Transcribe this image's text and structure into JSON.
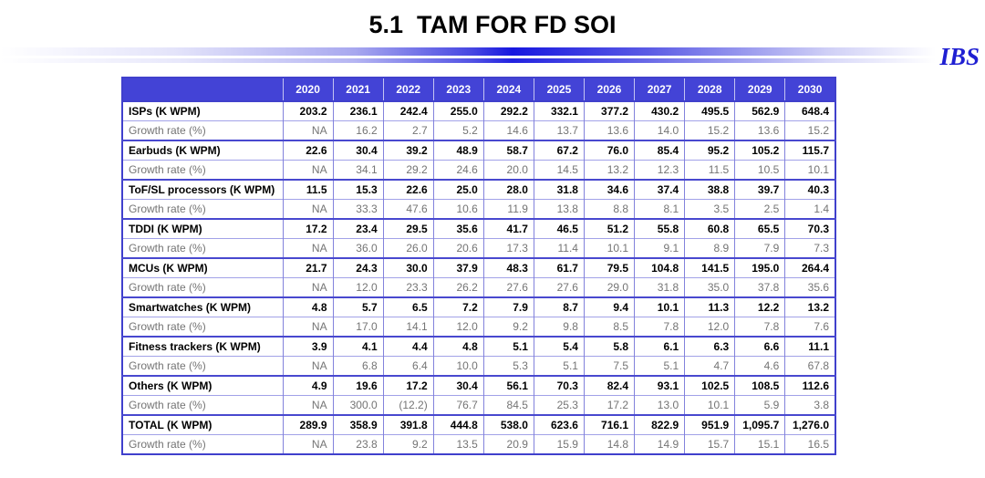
{
  "title": "5.1  TAM FOR FD SOI",
  "logo_text": "IBS",
  "colors": {
    "header_bg": "#4343d6",
    "border_strong": "#4040cc",
    "border_light": "#8282dc",
    "growth_text": "#747474",
    "accent_blue": "#1f1fd2"
  },
  "chart_data": {
    "type": "table",
    "title": "5.1  TAM FOR FD SOI",
    "columns": [
      "",
      "2020",
      "2021",
      "2022",
      "2023",
      "2024",
      "2025",
      "2026",
      "2027",
      "2028",
      "2029",
      "2030"
    ],
    "rows": [
      {
        "label": "ISPs (K WPM)",
        "style": "product",
        "values": [
          "203.2",
          "236.1",
          "242.4",
          "255.0",
          "292.2",
          "332.1",
          "377.2",
          "430.2",
          "495.5",
          "562.9",
          "648.4"
        ]
      },
      {
        "label": "Growth rate (%)",
        "style": "growth",
        "values": [
          "NA",
          "16.2",
          "2.7",
          "5.2",
          "14.6",
          "13.7",
          "13.6",
          "14.0",
          "15.2",
          "13.6",
          "15.2"
        ]
      },
      {
        "label": "Earbuds (K WPM)",
        "style": "product",
        "values": [
          "22.6",
          "30.4",
          "39.2",
          "48.9",
          "58.7",
          "67.2",
          "76.0",
          "85.4",
          "95.2",
          "105.2",
          "115.7"
        ]
      },
      {
        "label": "Growth rate (%)",
        "style": "growth",
        "values": [
          "NA",
          "34.1",
          "29.2",
          "24.6",
          "20.0",
          "14.5",
          "13.2",
          "12.3",
          "11.5",
          "10.5",
          "10.1"
        ]
      },
      {
        "label": "ToF/SL processors (K WPM)",
        "style": "product",
        "values": [
          "11.5",
          "15.3",
          "22.6",
          "25.0",
          "28.0",
          "31.8",
          "34.6",
          "37.4",
          "38.8",
          "39.7",
          "40.3"
        ]
      },
      {
        "label": "Growth rate (%)",
        "style": "growth",
        "values": [
          "NA",
          "33.3",
          "47.6",
          "10.6",
          "11.9",
          "13.8",
          "8.8",
          "8.1",
          "3.5",
          "2.5",
          "1.4"
        ]
      },
      {
        "label": "TDDI (K WPM)",
        "style": "product",
        "values": [
          "17.2",
          "23.4",
          "29.5",
          "35.6",
          "41.7",
          "46.5",
          "51.2",
          "55.8",
          "60.8",
          "65.5",
          "70.3"
        ]
      },
      {
        "label": "Growth rate (%)",
        "style": "growth",
        "values": [
          "NA",
          "36.0",
          "26.0",
          "20.6",
          "17.3",
          "11.4",
          "10.1",
          "9.1",
          "8.9",
          "7.9",
          "7.3"
        ]
      },
      {
        "label": "MCUs (K WPM)",
        "style": "product",
        "values": [
          "21.7",
          "24.3",
          "30.0",
          "37.9",
          "48.3",
          "61.7",
          "79.5",
          "104.8",
          "141.5",
          "195.0",
          "264.4"
        ]
      },
      {
        "label": "Growth rate (%)",
        "style": "growth",
        "values": [
          "NA",
          "12.0",
          "23.3",
          "26.2",
          "27.6",
          "27.6",
          "29.0",
          "31.8",
          "35.0",
          "37.8",
          "35.6"
        ]
      },
      {
        "label": "Smartwatches (K WPM)",
        "style": "product",
        "values": [
          "4.8",
          "5.7",
          "6.5",
          "7.2",
          "7.9",
          "8.7",
          "9.4",
          "10.1",
          "11.3",
          "12.2",
          "13.2"
        ]
      },
      {
        "label": "Growth rate (%)",
        "style": "growth",
        "values": [
          "NA",
          "17.0",
          "14.1",
          "12.0",
          "9.2",
          "9.8",
          "8.5",
          "7.8",
          "12.0",
          "7.8",
          "7.6"
        ]
      },
      {
        "label": "Fitness trackers (K WPM)",
        "style": "product",
        "values": [
          "3.9",
          "4.1",
          "4.4",
          "4.8",
          "5.1",
          "5.4",
          "5.8",
          "6.1",
          "6.3",
          "6.6",
          "11.1"
        ]
      },
      {
        "label": "Growth rate (%)",
        "style": "growth",
        "values": [
          "NA",
          "6.8",
          "6.4",
          "10.0",
          "5.3",
          "5.1",
          "7.5",
          "5.1",
          "4.7",
          "4.6",
          "67.8"
        ]
      },
      {
        "label": "Others (K WPM)",
        "style": "product",
        "values": [
          "4.9",
          "19.6",
          "17.2",
          "30.4",
          "56.1",
          "70.3",
          "82.4",
          "93.1",
          "102.5",
          "108.5",
          "112.6"
        ]
      },
      {
        "label": "Growth rate (%)",
        "style": "growth",
        "values": [
          "NA",
          "300.0",
          "(12.2)",
          "76.7",
          "84.5",
          "25.3",
          "17.2",
          "13.0",
          "10.1",
          "5.9",
          "3.8"
        ]
      },
      {
        "label": "TOTAL (K WPM)",
        "style": "product",
        "values": [
          "289.9",
          "358.9",
          "391.8",
          "444.8",
          "538.0",
          "623.6",
          "716.1",
          "822.9",
          "951.9",
          "1,095.7",
          "1,276.0"
        ]
      },
      {
        "label": "Growth rate (%)",
        "style": "growth",
        "values": [
          "NA",
          "23.8",
          "9.2",
          "13.5",
          "20.9",
          "15.9",
          "14.8",
          "14.9",
          "15.7",
          "15.1",
          "16.5"
        ]
      }
    ]
  }
}
